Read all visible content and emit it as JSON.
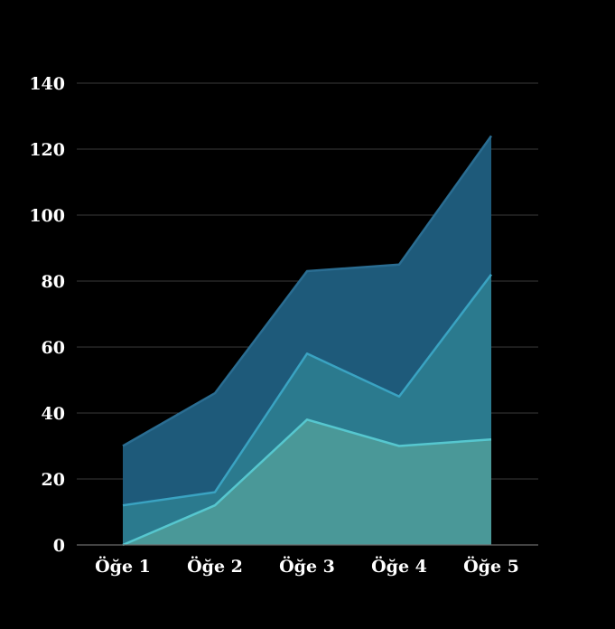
{
  "chart_data": {
    "type": "area",
    "stacked": true,
    "categories": [
      "Öğe 1",
      "Öğe 2",
      "Öğe 3",
      "Öğe 4",
      "Öğe 5"
    ],
    "series": [
      {
        "values": [
          0,
          12,
          38,
          30,
          32
        ],
        "color": "#4a9898",
        "line_color": "#56c7cf"
      },
      {
        "values": [
          12,
          4,
          20,
          15,
          50
        ],
        "color": "#2b7a8e",
        "line_color": "#3aa3c2"
      },
      {
        "values": [
          18,
          30,
          25,
          40,
          42
        ],
        "color": "#1e5a7a",
        "line_color": "#2a6d92"
      }
    ],
    "ylim": [
      0,
      140
    ],
    "yticks": [
      0,
      20,
      40,
      60,
      80,
      100,
      120,
      140
    ],
    "ytick_labels": [
      "0",
      "20",
      "40",
      "60",
      "80",
      "100",
      "120",
      "140"
    ],
    "grid": true,
    "background": "#000000",
    "title": "",
    "xlabel": "",
    "ylabel": ""
  }
}
